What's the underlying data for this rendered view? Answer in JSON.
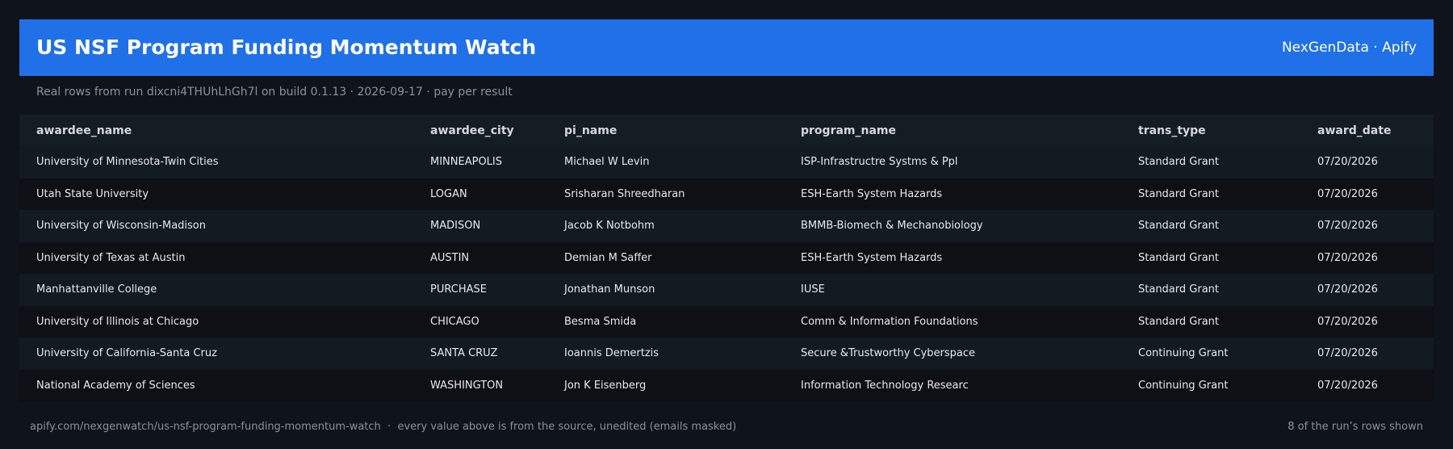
{
  "header": {
    "title": "US NSF Program Funding Momentum Watch",
    "brand": "NexGenData · Apify"
  },
  "subtitle": "Real rows from run dixcni4THUhLhGh7l on build 0.1.13 · 2026-09-17 · pay per result",
  "table": {
    "columns": [
      "awardee_name",
      "awardee_city",
      "pi_name",
      "program_name",
      "trans_type",
      "award_date"
    ],
    "rows": [
      [
        "University of Minnesota-Twin Cities",
        "MINNEAPOLIS",
        "Michael W Levin",
        "ISP-Infrastructre Systms & Ppl",
        "Standard Grant",
        "07/20/2026"
      ],
      [
        "Utah State University",
        "LOGAN",
        "Srisharan Shreedharan",
        "ESH-Earth System Hazards",
        "Standard Grant",
        "07/20/2026"
      ],
      [
        "University of Wisconsin-Madison",
        "MADISON",
        "Jacob K Notbohm",
        "BMMB-Biomech & Mechanobiology",
        "Standard Grant",
        "07/20/2026"
      ],
      [
        "University of Texas at Austin",
        "AUSTIN",
        "Demian M Saffer",
        "ESH-Earth System Hazards",
        "Standard Grant",
        "07/20/2026"
      ],
      [
        "Manhattanville College",
        "PURCHASE",
        "Jonathan Munson",
        "IUSE",
        "Standard Grant",
        "07/20/2026"
      ],
      [
        "University of Illinois at Chicago",
        "CHICAGO",
        "Besma Smida",
        "Comm & Information Foundations",
        "Standard Grant",
        "07/20/2026"
      ],
      [
        "University of California-Santa Cruz",
        "SANTA CRUZ",
        "Ioannis Demertzis",
        "Secure &Trustworthy Cyberspace",
        "Continuing Grant",
        "07/20/2026"
      ],
      [
        "National Academy of Sciences",
        "WASHINGTON",
        "Jon K Eisenberg",
        "Information Technology Researc",
        "Continuing Grant",
        "07/20/2026"
      ]
    ]
  },
  "footer": {
    "left": "apify.com/nexgenwatch/us-nsf-program-funding-momentum-watch  ·  every value above is from the source, unedited (emails masked)",
    "right": "8 of the run’s rows shown"
  }
}
